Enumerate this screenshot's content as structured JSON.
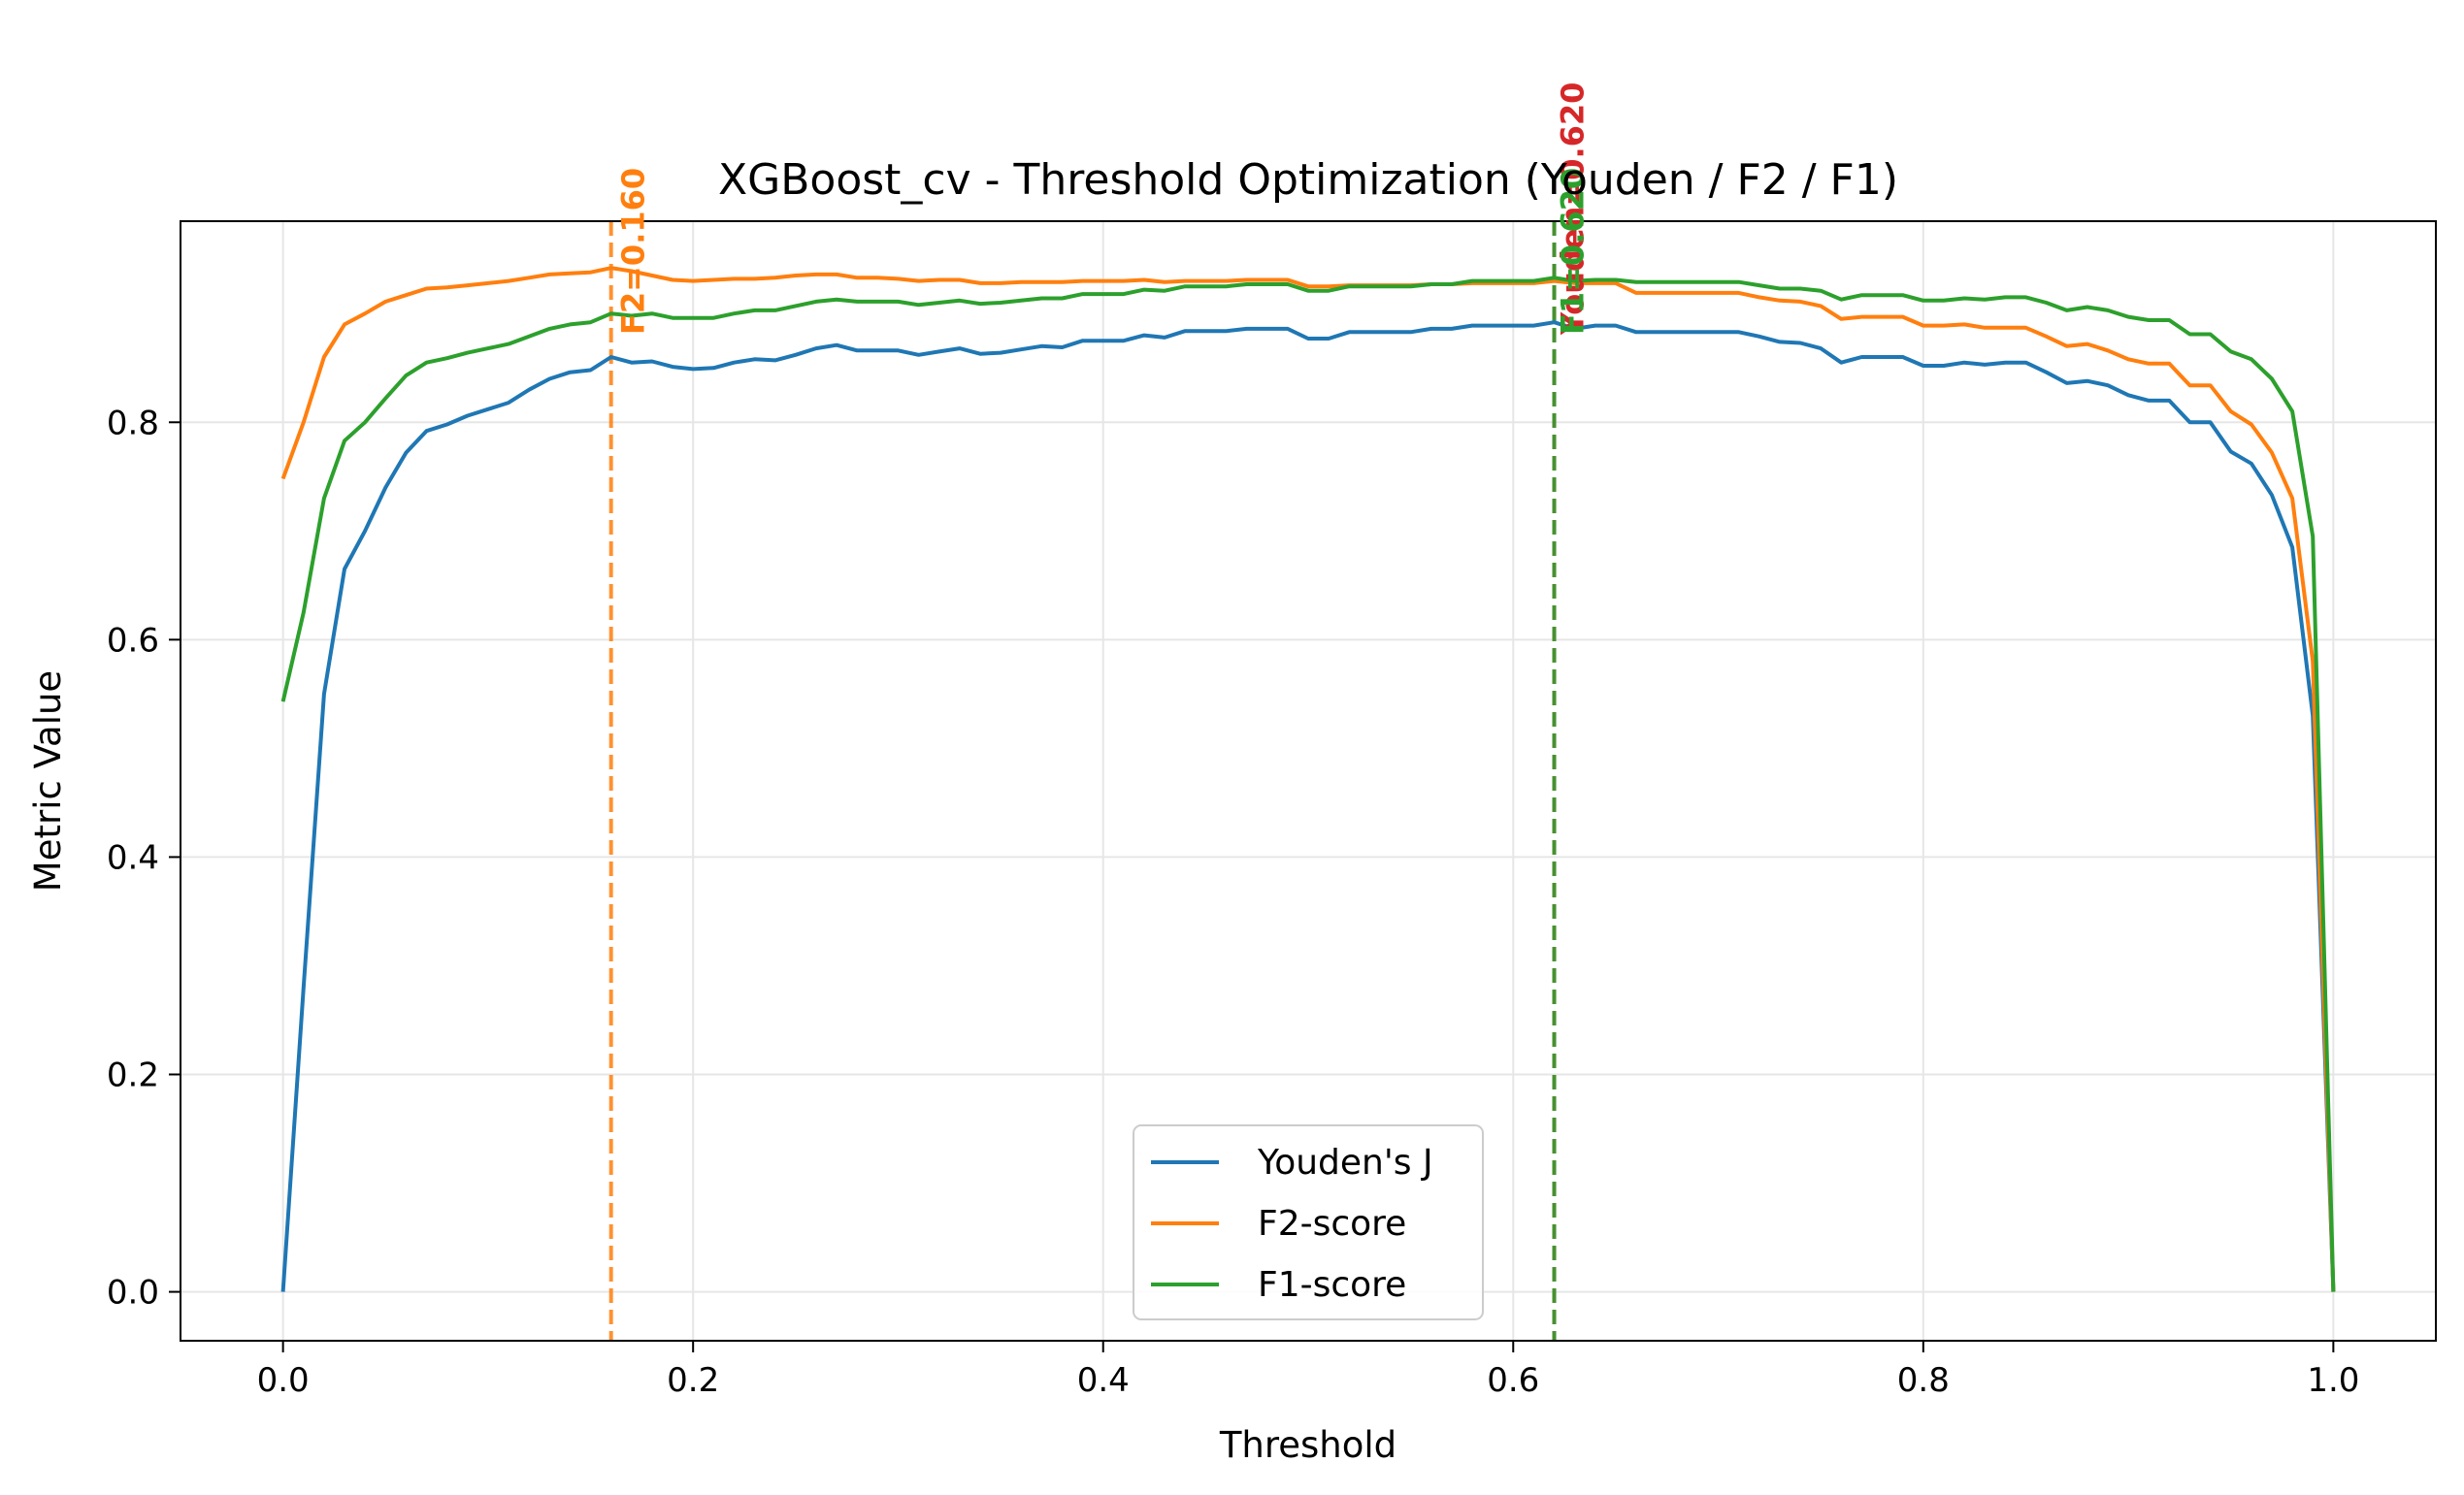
{
  "chart_data": {
    "type": "line",
    "title": "XGBoost_cv - Threshold Optimization (Youden / F2 / F1)",
    "xlabel": "Threshold",
    "ylabel": "Metric Value",
    "xlim": [
      -0.05,
      1.05
    ],
    "ylim": [
      -0.045,
      0.985
    ],
    "x_ticks": [
      0.0,
      0.2,
      0.4,
      0.6,
      0.8,
      1.0
    ],
    "x_tick_labels": [
      "0.0",
      "0.2",
      "0.4",
      "0.6",
      "0.8",
      "1.0"
    ],
    "y_ticks": [
      0.0,
      0.2,
      0.4,
      0.6,
      0.8
    ],
    "y_tick_labels": [
      "0.0",
      "0.2",
      "0.4",
      "0.6",
      "0.8"
    ],
    "grid": true,
    "legend_position": "lower center",
    "x": [
      0.0,
      0.01,
      0.02,
      0.03,
      0.04,
      0.05,
      0.06,
      0.07,
      0.08,
      0.09,
      0.1,
      0.11,
      0.12,
      0.13,
      0.14,
      0.15,
      0.16,
      0.17,
      0.18,
      0.19,
      0.2,
      0.21,
      0.22,
      0.23,
      0.24,
      0.25,
      0.26,
      0.27,
      0.28,
      0.29,
      0.3,
      0.31,
      0.32,
      0.33,
      0.34,
      0.35,
      0.36,
      0.37,
      0.38,
      0.39,
      0.4,
      0.41,
      0.42,
      0.43,
      0.44,
      0.45,
      0.46,
      0.47,
      0.48,
      0.49,
      0.5,
      0.51,
      0.52,
      0.53,
      0.54,
      0.55,
      0.56,
      0.57,
      0.58,
      0.59,
      0.6,
      0.61,
      0.62,
      0.63,
      0.64,
      0.65,
      0.66,
      0.67,
      0.68,
      0.69,
      0.7,
      0.71,
      0.72,
      0.73,
      0.74,
      0.75,
      0.76,
      0.77,
      0.78,
      0.79,
      0.8,
      0.81,
      0.82,
      0.83,
      0.84,
      0.85,
      0.86,
      0.87,
      0.88,
      0.89,
      0.9,
      0.91,
      0.92,
      0.93,
      0.94,
      0.95,
      0.96,
      0.97,
      0.98,
      0.99,
      1.0
    ],
    "series": [
      {
        "name": "Youden's J",
        "color": "#1f77b4",
        "values": [
          0.0,
          0.28,
          0.55,
          0.665,
          0.7,
          0.74,
          0.772,
          0.792,
          0.798,
          0.806,
          0.812,
          0.818,
          0.83,
          0.84,
          0.846,
          0.848,
          0.86,
          0.855,
          0.856,
          0.851,
          0.849,
          0.85,
          0.855,
          0.858,
          0.857,
          0.862,
          0.868,
          0.871,
          0.866,
          0.866,
          0.866,
          0.862,
          0.865,
          0.868,
          0.863,
          0.864,
          0.867,
          0.87,
          0.869,
          0.875,
          0.875,
          0.875,
          0.88,
          0.878,
          0.884,
          0.884,
          0.884,
          0.886,
          0.886,
          0.886,
          0.877,
          0.877,
          0.883,
          0.883,
          0.883,
          0.883,
          0.886,
          0.886,
          0.889,
          0.889,
          0.889,
          0.889,
          0.892,
          0.886,
          0.889,
          0.889,
          0.883,
          0.883,
          0.883,
          0.883,
          0.883,
          0.883,
          0.879,
          0.874,
          0.873,
          0.868,
          0.855,
          0.86,
          0.86,
          0.86,
          0.852,
          0.852,
          0.855,
          0.853,
          0.855,
          0.855,
          0.846,
          0.836,
          0.838,
          0.834,
          0.825,
          0.82,
          0.82,
          0.8,
          0.8,
          0.773,
          0.762,
          0.733,
          0.685,
          0.53,
          0.0
        ]
      },
      {
        "name": "F2-score",
        "color": "#ff7f0e",
        "values": [
          0.748,
          0.8,
          0.86,
          0.89,
          0.9,
          0.911,
          0.917,
          0.923,
          0.924,
          0.926,
          0.928,
          0.93,
          0.933,
          0.936,
          0.937,
          0.938,
          0.942,
          0.939,
          0.935,
          0.931,
          0.93,
          0.931,
          0.932,
          0.932,
          0.933,
          0.935,
          0.936,
          0.936,
          0.933,
          0.933,
          0.932,
          0.93,
          0.931,
          0.931,
          0.928,
          0.928,
          0.929,
          0.929,
          0.929,
          0.93,
          0.93,
          0.93,
          0.931,
          0.929,
          0.93,
          0.93,
          0.93,
          0.931,
          0.931,
          0.931,
          0.925,
          0.925,
          0.926,
          0.926,
          0.926,
          0.926,
          0.927,
          0.927,
          0.928,
          0.928,
          0.928,
          0.928,
          0.93,
          0.928,
          0.928,
          0.928,
          0.919,
          0.919,
          0.919,
          0.919,
          0.919,
          0.919,
          0.915,
          0.912,
          0.911,
          0.907,
          0.895,
          0.897,
          0.897,
          0.897,
          0.889,
          0.889,
          0.89,
          0.887,
          0.887,
          0.887,
          0.879,
          0.87,
          0.872,
          0.866,
          0.858,
          0.854,
          0.854,
          0.834,
          0.834,
          0.81,
          0.798,
          0.772,
          0.73,
          0.58,
          0.0
        ]
      },
      {
        "name": "F1-score",
        "color": "#2ca02c",
        "values": [
          0.543,
          0.625,
          0.73,
          0.783,
          0.8,
          0.822,
          0.843,
          0.855,
          0.859,
          0.864,
          0.868,
          0.872,
          0.879,
          0.886,
          0.89,
          0.892,
          0.9,
          0.898,
          0.9,
          0.896,
          0.896,
          0.896,
          0.9,
          0.903,
          0.903,
          0.907,
          0.911,
          0.913,
          0.911,
          0.911,
          0.911,
          0.908,
          0.91,
          0.912,
          0.909,
          0.91,
          0.912,
          0.914,
          0.914,
          0.918,
          0.918,
          0.918,
          0.922,
          0.921,
          0.925,
          0.925,
          0.925,
          0.927,
          0.927,
          0.927,
          0.921,
          0.921,
          0.925,
          0.925,
          0.925,
          0.925,
          0.927,
          0.927,
          0.93,
          0.93,
          0.93,
          0.93,
          0.933,
          0.93,
          0.931,
          0.931,
          0.929,
          0.929,
          0.929,
          0.929,
          0.929,
          0.929,
          0.926,
          0.923,
          0.923,
          0.921,
          0.913,
          0.917,
          0.917,
          0.917,
          0.912,
          0.912,
          0.914,
          0.913,
          0.915,
          0.915,
          0.91,
          0.903,
          0.906,
          0.903,
          0.897,
          0.894,
          0.894,
          0.881,
          0.881,
          0.865,
          0.858,
          0.84,
          0.81,
          0.695,
          0.0
        ]
      }
    ],
    "annotations": [
      {
        "label": "F2=0.160",
        "x": 0.16,
        "color": "#ff7f0e"
      },
      {
        "label": "Youden=0.620",
        "x": 0.62,
        "color": "#d62728"
      },
      {
        "label": "F1=0.620",
        "x": 0.62,
        "color": "#2ca02c"
      }
    ]
  }
}
